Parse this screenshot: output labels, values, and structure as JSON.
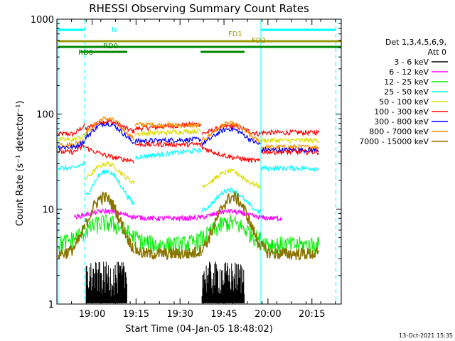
{
  "chart_data": {
    "type": "line",
    "title": "RHESSI Observing Summary Count Rates",
    "xlabel": "Start Time (04-Jan-05 18:48:02)",
    "ylabel": "Count Rate (s⁻¹ detector⁻¹)",
    "yscale": "log",
    "ylim": [
      1,
      1000
    ],
    "xlim_minutes": [
      0,
      97
    ],
    "x_ticks": [
      {
        "label": "19:00",
        "minutes": 12
      },
      {
        "label": "19:15",
        "minutes": 27
      },
      {
        "label": "19:30",
        "minutes": 42
      },
      {
        "label": "19:45",
        "minutes": 57
      },
      {
        "label": "20:00",
        "minutes": 72
      },
      {
        "label": "20:15",
        "minutes": 87
      }
    ],
    "y_ticks": [
      {
        "label": "1",
        "value": 1
      },
      {
        "label": "10",
        "value": 10
      },
      {
        "label": "100",
        "value": 100
      },
      {
        "label": "1000",
        "value": 1000
      }
    ],
    "legend_header": [
      "Det 1,3,4,5,6,9,",
      "Att 0"
    ],
    "legend_position": "right",
    "series": [
      {
        "name": "3 - 6 keV",
        "color": "#000000"
      },
      {
        "name": "6 - 12 keV",
        "color": "#ff00ff"
      },
      {
        "name": "12 - 25 keV",
        "color": "#00ee00"
      },
      {
        "name": "25 - 50 keV",
        "color": "#00ffff"
      },
      {
        "name": "50 - 100 keV",
        "color": "#dddd00"
      },
      {
        "name": "100 - 300 keV",
        "color": "#ff0000"
      },
      {
        "name": "300 - 800 keV",
        "color": "#0000ff"
      },
      {
        "name": "800 - 7000 keV",
        "color": "#ff8c00"
      },
      {
        "name": "7000 - 15000 keV",
        "color": "#8b7500"
      }
    ],
    "orbit_bars": [
      {
        "label": "N",
        "color": "#00ffff"
      },
      {
        "label": "FD1",
        "color": "#999900"
      },
      {
        "label": "FD2",
        "color": "#999900"
      },
      {
        "label": "RD0",
        "color": "#008800"
      },
      {
        "label": "RD6",
        "color": "#008800"
      }
    ],
    "footer_date": "13-Oct-2021 15:35"
  }
}
